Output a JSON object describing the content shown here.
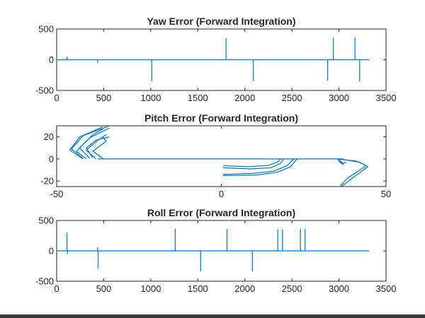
{
  "figure": {
    "background": "#ffffff",
    "bottom_edge_color": "#3a3a3a"
  },
  "series_color": "#0072bd",
  "chart_data": [
    {
      "id": "yaw",
      "type": "line",
      "title": "Yaw Error (Forward Integration)",
      "xlabel": "",
      "ylabel": "",
      "xlim": [
        0,
        3500
      ],
      "ylim": [
        -500,
        500
      ],
      "xticks": [
        0,
        500,
        1000,
        1500,
        2000,
        2500,
        3000,
        3500
      ],
      "yticks": [
        -500,
        0,
        500
      ],
      "grid": false,
      "baseline": {
        "x": [
          0,
          3320
        ],
        "y": 0
      },
      "spikes": [
        {
          "x": 110,
          "y": 50
        },
        {
          "x": 435,
          "y": -50
        },
        {
          "x": 1010,
          "y": -350
        },
        {
          "x": 1800,
          "y": 350
        },
        {
          "x": 2090,
          "y": -350
        },
        {
          "x": 2880,
          "y": -340
        },
        {
          "x": 2940,
          "y": 350
        },
        {
          "x": 3170,
          "y": 360
        },
        {
          "x": 3220,
          "y": -350
        }
      ]
    },
    {
      "id": "pitch",
      "type": "line",
      "title": "Pitch Error (Forward Integration)",
      "xlabel": "",
      "ylabel": "",
      "xlim": [
        -50,
        50
      ],
      "ylim": [
        -25,
        30
      ],
      "xticks": [
        -50,
        0,
        50
      ],
      "yticks": [
        -20,
        0,
        20
      ],
      "grid": false,
      "polylines": [
        [
          [
            -37.5,
            0
          ],
          [
            37,
            0
          ]
        ],
        [
          [
            -42,
            0
          ],
          [
            -46,
            8
          ],
          [
            -43,
            20
          ],
          [
            -36,
            29
          ]
        ],
        [
          [
            -42,
            0.5
          ],
          [
            -45.5,
            9
          ],
          [
            -42,
            21
          ],
          [
            -34,
            30
          ]
        ],
        [
          [
            -41,
            0
          ],
          [
            -44,
            7
          ],
          [
            -40,
            19
          ],
          [
            -34,
            28
          ]
        ],
        [
          [
            -40,
            0.5
          ],
          [
            -43,
            10
          ],
          [
            -39,
            22
          ],
          [
            -36,
            27
          ]
        ],
        [
          [
            -38,
            0
          ],
          [
            -41,
            8
          ],
          [
            -37,
            18
          ],
          [
            -35,
            22
          ]
        ],
        [
          [
            -36,
            0.5
          ],
          [
            -39,
            7
          ],
          [
            -35,
            16
          ],
          [
            -36,
            20
          ]
        ],
        [
          [
            -39,
            1
          ],
          [
            -41,
            10
          ],
          [
            -38,
            17
          ],
          [
            -34,
            20
          ]
        ],
        [
          [
            0.5,
            -6
          ],
          [
            8,
            -7
          ],
          [
            14,
            -6
          ],
          [
            17,
            -3
          ],
          [
            18,
            0
          ]
        ],
        [
          [
            0.5,
            -8
          ],
          [
            9,
            -9
          ],
          [
            15,
            -8
          ],
          [
            18,
            -4
          ],
          [
            19,
            0
          ]
        ],
        [
          [
            0.5,
            -14
          ],
          [
            10,
            -13
          ],
          [
            16,
            -11
          ],
          [
            20,
            -6
          ],
          [
            22,
            0
          ]
        ],
        [
          [
            0.5,
            -15
          ],
          [
            11,
            -14.5
          ],
          [
            17,
            -12
          ],
          [
            21,
            -7
          ],
          [
            23,
            0
          ]
        ],
        [
          [
            35,
            0
          ],
          [
            41,
            -2
          ],
          [
            44,
            -6
          ],
          [
            38,
            -18
          ],
          [
            36,
            -25
          ]
        ],
        [
          [
            36,
            0
          ],
          [
            42,
            -3
          ],
          [
            44.5,
            -7
          ],
          [
            39,
            -19
          ],
          [
            36.5,
            -25
          ]
        ],
        [
          [
            35.5,
            0
          ],
          [
            36.5,
            -3
          ],
          [
            37,
            -5
          ],
          [
            36,
            -3
          ],
          [
            35.5,
            -1
          ]
        ],
        [
          [
            36,
            -2
          ],
          [
            37,
            -4
          ],
          [
            38,
            -3
          ]
        ]
      ]
    },
    {
      "id": "roll",
      "type": "line",
      "title": "Roll Error (Forward Integration)",
      "xlabel": "",
      "ylabel": "",
      "xlim": [
        0,
        3500
      ],
      "ylim": [
        -500,
        500
      ],
      "xticks": [
        0,
        500,
        1000,
        1500,
        2000,
        2500,
        3000,
        3500
      ],
      "yticks": [
        -500,
        0,
        500
      ],
      "grid": false,
      "baseline": {
        "x": [
          0,
          3320
        ],
        "y": 0
      },
      "spikes": [
        {
          "x": 110,
          "y": 300
        },
        {
          "x": 115,
          "y": -50
        },
        {
          "x": 435,
          "y": 60
        },
        {
          "x": 440,
          "y": -290
        },
        {
          "x": 1260,
          "y": 365
        },
        {
          "x": 1530,
          "y": -340
        },
        {
          "x": 1810,
          "y": 360
        },
        {
          "x": 2080,
          "y": -340
        },
        {
          "x": 2350,
          "y": 360
        },
        {
          "x": 2400,
          "y": 355
        },
        {
          "x": 2590,
          "y": 360
        },
        {
          "x": 2640,
          "y": 360
        }
      ]
    }
  ]
}
